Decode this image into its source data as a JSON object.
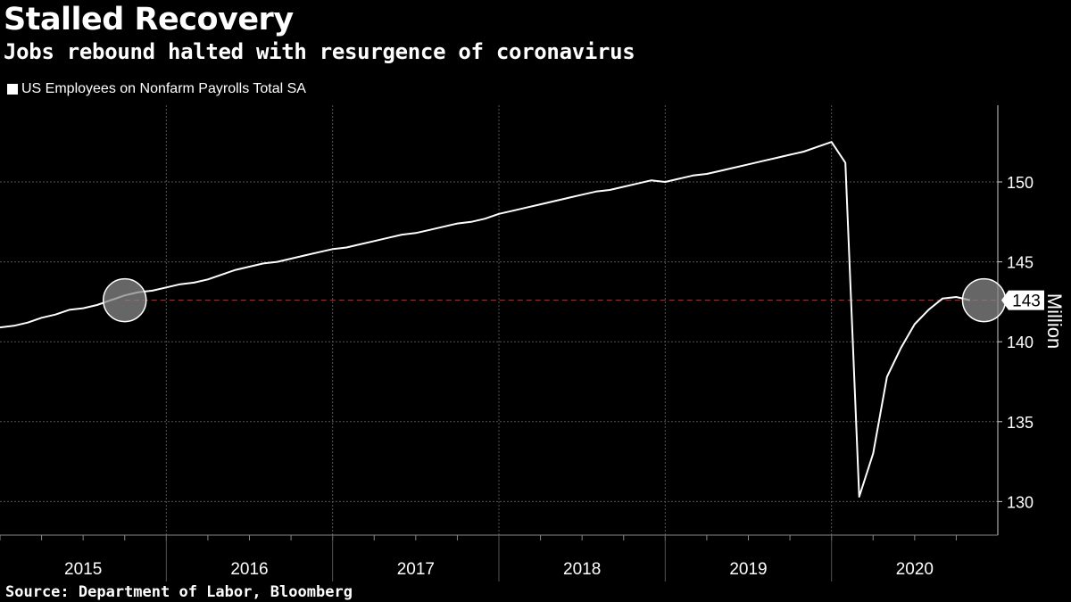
{
  "header": {
    "title": "Stalled Recovery",
    "subtitle": "Jobs rebound halted with resurgence of coronavirus"
  },
  "legend": {
    "label": "US Employees on Nonfarm Payrolls Total SA"
  },
  "footer": {
    "source": "Source: Department of Labor, Bloomberg"
  },
  "colors": {
    "background": "#000000",
    "line": "#ffffff",
    "grid": "#555555",
    "reference": "#c8282a"
  },
  "chart_data": {
    "type": "line",
    "title": "Stalled Recovery",
    "subtitle": "Jobs rebound halted with resurgence of coronavirus",
    "ylabel": "Million",
    "ylim": [
      127.9,
      154.8
    ],
    "yticks": [
      130,
      135,
      140,
      145,
      150
    ],
    "x_start": 2015.0,
    "x_end": 2021.0,
    "year_labels": [
      "2015",
      "2016",
      "2017",
      "2018",
      "2019",
      "2020"
    ],
    "series": [
      {
        "name": "US Employees on Nonfarm Payrolls Total SA",
        "start": "2015-01",
        "values": [
          140.9,
          141.0,
          141.2,
          141.5,
          141.7,
          142.0,
          142.1,
          142.3,
          142.6,
          142.9,
          143.1,
          143.2,
          143.4,
          143.6,
          143.7,
          143.9,
          144.2,
          144.5,
          144.7,
          144.9,
          145.0,
          145.2,
          145.4,
          145.6,
          145.8,
          145.9,
          146.1,
          146.3,
          146.5,
          146.7,
          146.8,
          147.0,
          147.2,
          147.4,
          147.5,
          147.7,
          148.0,
          148.2,
          148.4,
          148.6,
          148.8,
          149.0,
          149.2,
          149.4,
          149.5,
          149.7,
          149.9,
          150.1,
          150.0,
          150.2,
          150.4,
          150.5,
          150.7,
          150.9,
          151.1,
          151.3,
          151.5,
          151.7,
          151.9,
          152.2,
          152.5,
          151.2,
          130.3,
          133.0,
          137.8,
          139.6,
          141.1,
          142.0,
          142.7,
          142.8,
          142.6
        ]
      }
    ],
    "reference_line": {
      "value": 142.6,
      "label": "143"
    },
    "highlights": [
      {
        "date": "2015-10",
        "value": 142.6
      },
      {
        "date": "2020-12",
        "value": 142.6
      }
    ]
  }
}
